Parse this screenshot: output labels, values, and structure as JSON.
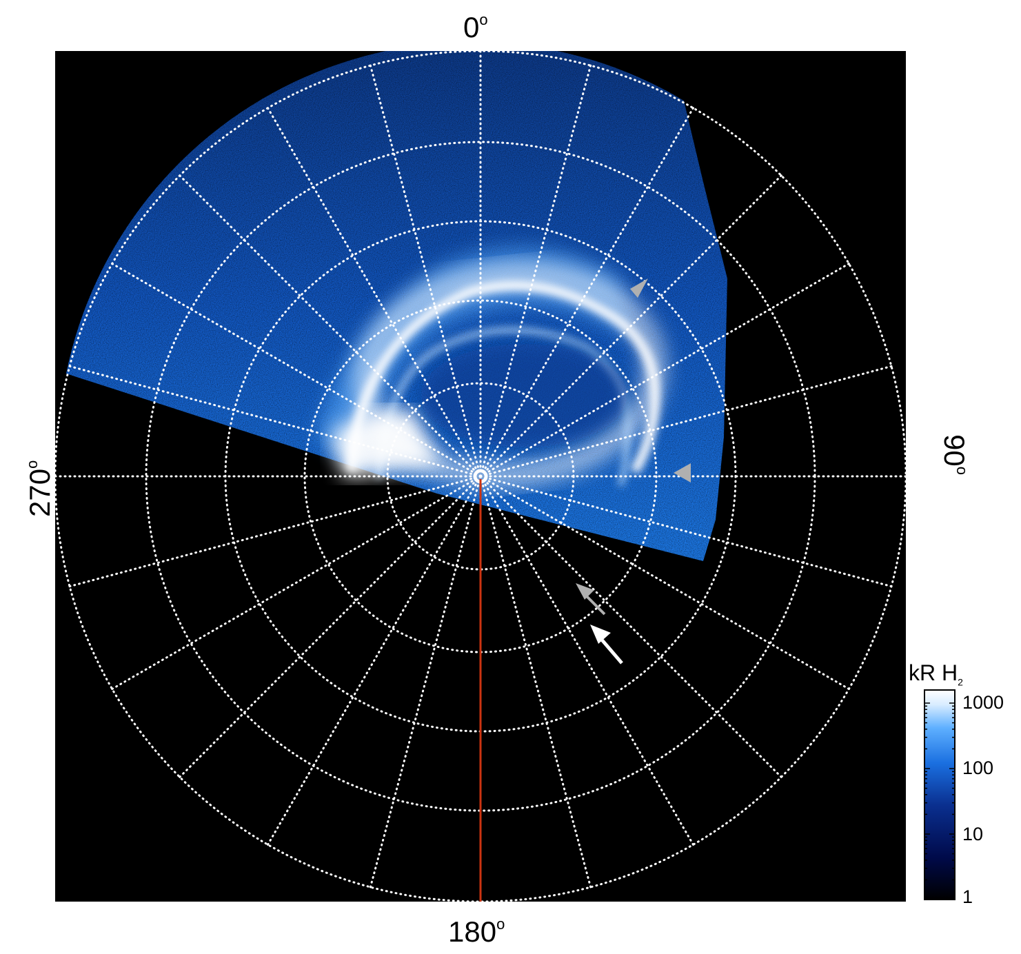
{
  "figure": {
    "axis_labels": {
      "top": "0",
      "right": "90",
      "bottom": "180",
      "left": "270"
    },
    "degree_mark": "o",
    "colorbar": {
      "title": "kR H",
      "title_subscript": "2",
      "ticks": [
        "1000",
        "100",
        "10",
        "1"
      ],
      "scale": "log",
      "colors": [
        "#000000",
        "#000a4a",
        "#0a2f8f",
        "#1a6fe0",
        "#5fb0ff",
        "#d8ecff",
        "#ffffff"
      ]
    },
    "background": "#000000",
    "grid_color": "#ffffff",
    "meridian_color": "#cc3311",
    "arrow_colors": {
      "gray": "#b0b0b0",
      "white": "#ffffff"
    }
  }
}
